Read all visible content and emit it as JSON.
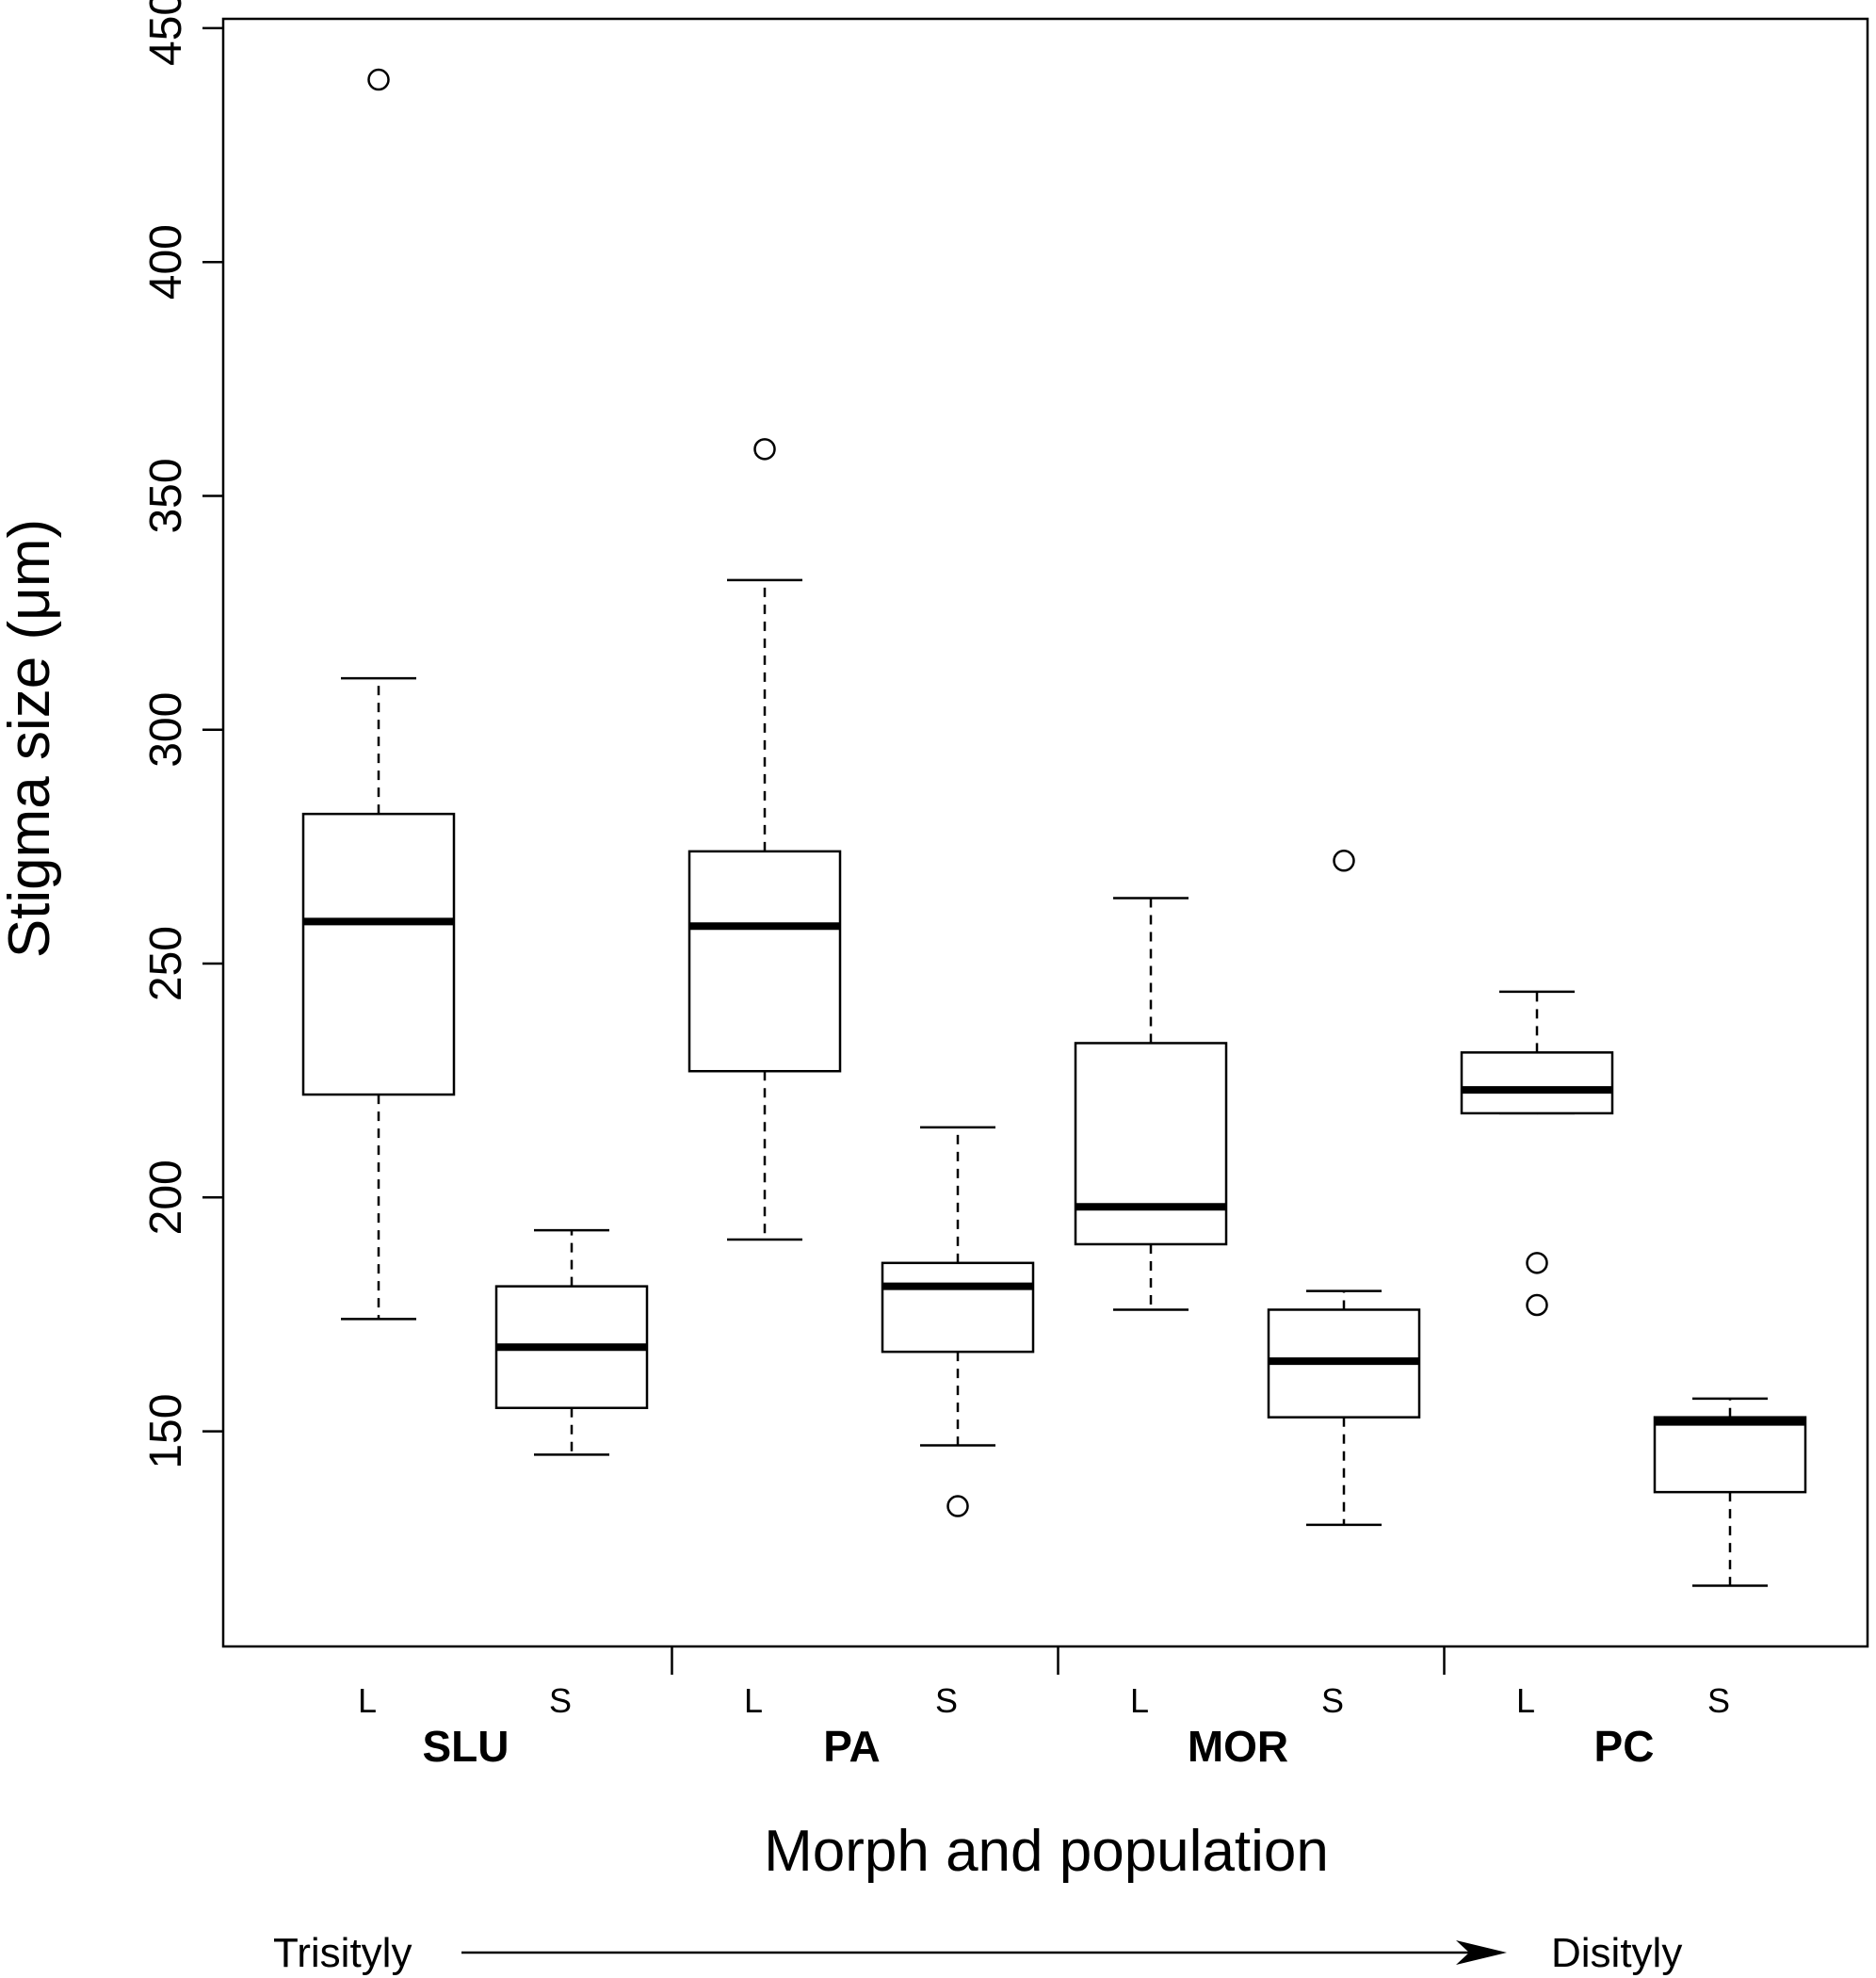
{
  "chart_data": {
    "type": "boxplot",
    "ylabel": "Stigma size (μm)",
    "xlabel": "Morph and population",
    "ylim": [
      104,
      452
    ],
    "yticks": [
      150,
      200,
      250,
      300,
      350,
      400,
      450
    ],
    "groups": [
      {
        "population": "SLU",
        "morphs": [
          "L",
          "S"
        ]
      },
      {
        "population": "PA",
        "morphs": [
          "L",
          "S"
        ]
      },
      {
        "population": "MOR",
        "morphs": [
          "L",
          "S"
        ]
      },
      {
        "population": "PC",
        "morphs": [
          "L",
          "S"
        ]
      }
    ],
    "boxes": [
      {
        "population": "SLU",
        "morph": "L",
        "whisker_low": 174,
        "q1": 222,
        "median": 259,
        "q3": 282,
        "whisker_high": 311,
        "outliers": [
          439
        ]
      },
      {
        "population": "SLU",
        "morph": "S",
        "whisker_low": 145,
        "q1": 155,
        "median": 168,
        "q3": 181,
        "whisker_high": 193,
        "outliers": []
      },
      {
        "population": "PA",
        "morph": "L",
        "whisker_low": 191,
        "q1": 227,
        "median": 258,
        "q3": 274,
        "whisker_high": 332,
        "outliers": [
          360
        ]
      },
      {
        "population": "PA",
        "morph": "S",
        "whisker_low": 147,
        "q1": 167,
        "median": 181,
        "q3": 186,
        "whisker_high": 215,
        "outliers": [
          134
        ]
      },
      {
        "population": "MOR",
        "morph": "L",
        "whisker_low": 176,
        "q1": 190,
        "median": 198,
        "q3": 233,
        "whisker_high": 264,
        "outliers": []
      },
      {
        "population": "MOR",
        "morph": "S",
        "whisker_low": 130,
        "q1": 153,
        "median": 165,
        "q3": 176,
        "whisker_high": 180,
        "outliers": [
          272
        ]
      },
      {
        "population": "PC",
        "morph": "L",
        "whisker_low": 218,
        "q1": 218,
        "median": 223,
        "q3": 231,
        "whisker_high": 244,
        "outliers": [
          186,
          177
        ]
      },
      {
        "population": "PC",
        "morph": "S",
        "whisker_low": 117,
        "q1": 137,
        "median": 152,
        "q3": 153,
        "whisker_high": 157,
        "outliers": []
      }
    ],
    "gradient": {
      "start_label": "Trisityly",
      "end_label": "Disityly"
    },
    "grid": false,
    "legend": "none"
  }
}
